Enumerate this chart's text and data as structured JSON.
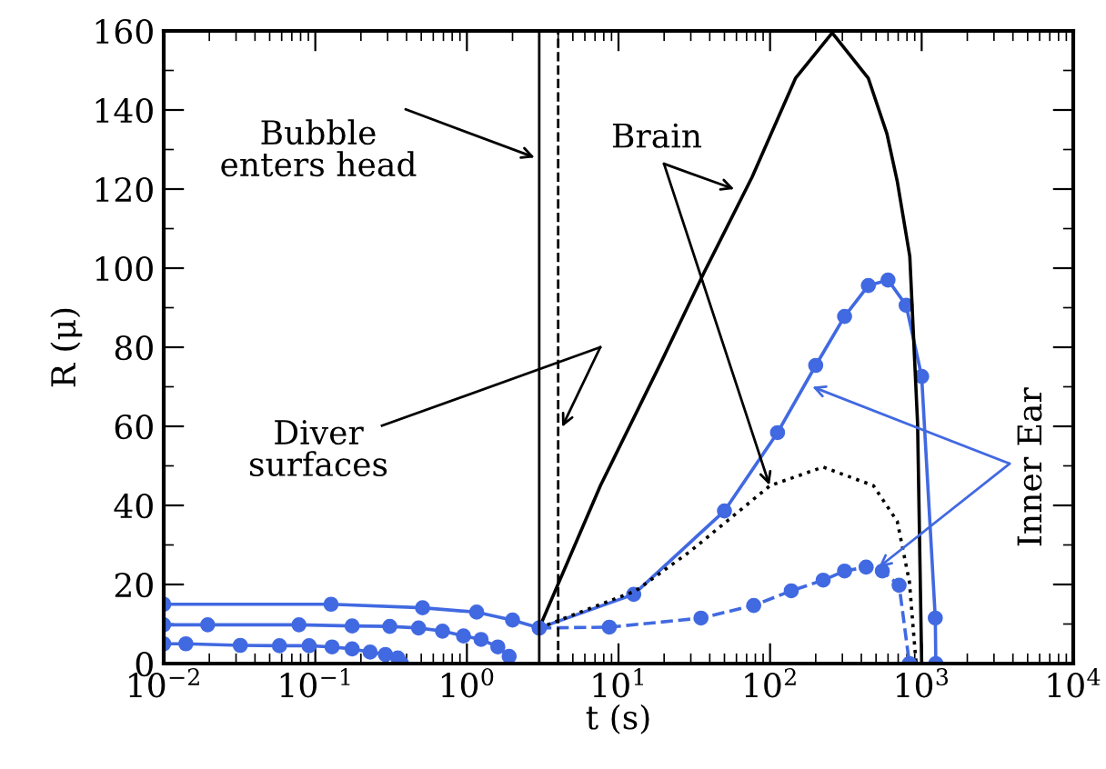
{
  "chart_data": {
    "type": "line",
    "xlabel": "t (s)",
    "ylabel": "R (μ)",
    "log": "x",
    "xlim": [
      0.01,
      10000
    ],
    "xticks": [
      {
        "value": 0.01,
        "label": "10$^{−2}$"
      },
      {
        "value": 0.1,
        "label": "10$^{−1}$"
      },
      {
        "value": 1,
        "label": "10$^{0}$"
      },
      {
        "value": 10,
        "label": "10$^{1}$"
      },
      {
        "value": 100,
        "label": "10$^{2}$"
      },
      {
        "value": 1000,
        "label": "10$^{3}$"
      },
      {
        "value": 10000,
        "label": "10$^{4}$"
      }
    ],
    "ylim": [
      0,
      160
    ],
    "yticks": [
      0,
      20,
      40,
      60,
      80,
      100,
      120,
      140,
      160
    ],
    "grid": false,
    "series": [
      {
        "color": "#4169e1",
        "marker": "circle",
        "line_style": "solid",
        "x": [
          0.01,
          0.127,
          0.51,
          1.16,
          2,
          3,
          12.6,
          50,
          112,
          200,
          310,
          445,
          600,
          790,
          1000,
          1230,
          1240
        ],
        "values": [
          15,
          15,
          14.1,
          13,
          11,
          9,
          17.5,
          38.6,
          58.4,
          75.4,
          87.8,
          95.6,
          97,
          90.6,
          72.6,
          11.5,
          0
        ]
      },
      {
        "color": "#4169e1",
        "marker": "circle",
        "line_style": "solid",
        "x": [
          0.01,
          0.0195,
          0.078,
          0.175,
          0.31,
          0.48,
          0.69,
          0.95,
          1.24,
          1.6,
          1.9
        ],
        "values": [
          9.8,
          9.8,
          9.8,
          9.5,
          9.4,
          9,
          8.2,
          7,
          6.1,
          4.2,
          1.8
        ]
      },
      {
        "color": "#4169e1",
        "marker": "circle",
        "line_style": "solid",
        "x": [
          0.01,
          0.014,
          0.032,
          0.058,
          0.091,
          0.129,
          0.175,
          0.23,
          0.29,
          0.35,
          0.37
        ],
        "values": [
          5,
          5,
          4.6,
          4.5,
          4.5,
          4.2,
          3.7,
          2.9,
          2.3,
          1.4,
          0
        ]
      },
      {
        "color": "#000000",
        "marker": "none",
        "line_style": "solid",
        "x": [
          3,
          7.6,
          19,
          36.7,
          76,
          147,
          257,
          445,
          590,
          690,
          835,
          940,
          1000
        ],
        "values": [
          9,
          45,
          76,
          98.9,
          123,
          148,
          159.5,
          148,
          134,
          122,
          103,
          60.7,
          0
        ]
      },
      {
        "color": "#000000",
        "marker": "none",
        "line_style": "dotted",
        "x": [
          3,
          13,
          30,
          100,
          224,
          480,
          690,
          830,
          910,
          920
        ],
        "values": [
          9,
          18.4,
          28.5,
          45,
          49.7,
          45,
          36,
          20.7,
          2,
          0
        ]
      },
      {
        "color": "#4169e1",
        "marker": "circle",
        "line_style": "dashed",
        "x": [
          3,
          8.7,
          35,
          78,
          138,
          224,
          310,
          430,
          550,
          710,
          830
        ],
        "values": [
          9,
          9.2,
          11.5,
          14.7,
          18.4,
          21.1,
          23.4,
          24.4,
          23.4,
          19.8,
          0
        ]
      }
    ],
    "ref_lines": [
      {
        "axis": "x",
        "value": 3,
        "color": "#000000",
        "line_style": "solid"
      },
      {
        "axis": "x",
        "value": 4,
        "color": "#000000",
        "line_style": "dashed"
      }
    ],
    "annotations": [
      {
        "text": "Bubble\nenters head",
        "x": 2.8,
        "y": 128
      },
      "Diver\nsurfaces",
      {
        "text": "Brain",
        "x": 58,
        "y": 120
      },
      {
        "text": "Inner Ear",
        "x": 190,
        "y": 70
      }
    ]
  }
}
